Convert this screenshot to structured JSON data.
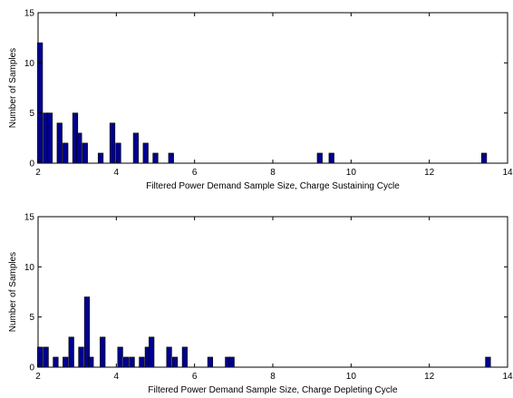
{
  "chart_data": [
    {
      "type": "bar",
      "xlabel": "Filtered Power Demand Sample Size, Charge Sustaining Cycle",
      "ylabel": "Number of Samples",
      "xlim": [
        2,
        14
      ],
      "ylim": [
        0,
        15
      ],
      "xticks": [
        2,
        4,
        6,
        8,
        10,
        12,
        14
      ],
      "yticks": [
        0,
        5,
        10,
        15
      ],
      "bar_width": 0.13,
      "bar_color": "#00008f",
      "x": [
        2.05,
        2.2,
        2.3,
        2.55,
        2.7,
        2.95,
        3.05,
        3.2,
        3.6,
        3.9,
        4.05,
        4.5,
        4.75,
        5.0,
        5.4,
        9.2,
        9.5,
        13.4
      ],
      "values": [
        12,
        5,
        5,
        4,
        2,
        5,
        3,
        2,
        1,
        4,
        2,
        3,
        2,
        1,
        1,
        1,
        1,
        1
      ]
    },
    {
      "type": "bar",
      "xlabel": "Filtered Power Demand Sample Size, Charge Depleting Cycle",
      "ylabel": "Number of Samples",
      "xlim": [
        2,
        14
      ],
      "ylim": [
        0,
        15
      ],
      "xticks": [
        2,
        4,
        6,
        8,
        10,
        12,
        14
      ],
      "yticks": [
        0,
        5,
        10,
        15
      ],
      "bar_width": 0.13,
      "bar_color": "#00008f",
      "x": [
        2.05,
        2.2,
        2.45,
        2.7,
        2.85,
        3.1,
        3.25,
        3.35,
        3.65,
        4.1,
        4.25,
        4.4,
        4.65,
        4.8,
        4.9,
        5.35,
        5.5,
        5.75,
        6.4,
        6.85,
        6.95,
        13.5
      ],
      "values": [
        2,
        2,
        1,
        1,
        3,
        2,
        7,
        1,
        3,
        2,
        1,
        1,
        1,
        2,
        3,
        2,
        1,
        2,
        1,
        1,
        1,
        1
      ]
    }
  ]
}
